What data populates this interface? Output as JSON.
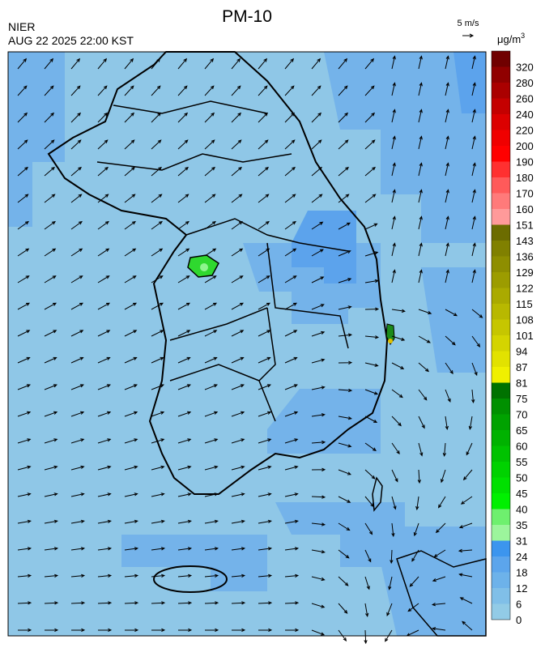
{
  "header": {
    "title": "PM-10",
    "source": "NIER",
    "timestamp": "AUG 22 2025 22:00 KST"
  },
  "wind_legend": {
    "label": "5 m/s"
  },
  "colorbar": {
    "unit": "μg/m",
    "unit_exponent": "3",
    "levels": [
      {
        "value": 0,
        "color": "#92cbe6"
      },
      {
        "value": 6,
        "color": "#80bfe8"
      },
      {
        "value": 12,
        "color": "#6db2ea"
      },
      {
        "value": 18,
        "color": "#5ca5ec"
      },
      {
        "value": 24,
        "color": "#3c95ee"
      },
      {
        "value": 31,
        "color": "#9cf59c"
      },
      {
        "value": 35,
        "color": "#6ef06e"
      },
      {
        "value": 40,
        "color": "#00f000"
      },
      {
        "value": 45,
        "color": "#00e000"
      },
      {
        "value": 50,
        "color": "#00d200"
      },
      {
        "value": 55,
        "color": "#00c200"
      },
      {
        "value": 60,
        "color": "#00b200"
      },
      {
        "value": 65,
        "color": "#00a200"
      },
      {
        "value": 70,
        "color": "#009000"
      },
      {
        "value": 75,
        "color": "#007200"
      },
      {
        "value": 81,
        "color": "#f0f000"
      },
      {
        "value": 87,
        "color": "#e2e200"
      },
      {
        "value": 94,
        "color": "#d4d400"
      },
      {
        "value": 101,
        "color": "#c6c600"
      },
      {
        "value": 108,
        "color": "#b8b800"
      },
      {
        "value": 115,
        "color": "#aaaa00"
      },
      {
        "value": 122,
        "color": "#9c9c00"
      },
      {
        "value": 129,
        "color": "#8e8e00"
      },
      {
        "value": 136,
        "color": "#808000"
      },
      {
        "value": 143,
        "color": "#6c6c00"
      },
      {
        "value": 151,
        "color": "#ff9a9a"
      },
      {
        "value": 160,
        "color": "#ff7a7a"
      },
      {
        "value": 170,
        "color": "#ff5a5a"
      },
      {
        "value": 180,
        "color": "#ff3030"
      },
      {
        "value": 190,
        "color": "#ff0000"
      },
      {
        "value": 200,
        "color": "#f00000"
      },
      {
        "value": 220,
        "color": "#dc0000"
      },
      {
        "value": 240,
        "color": "#c40000"
      },
      {
        "value": 260,
        "color": "#aa0000"
      },
      {
        "value": 280,
        "color": "#900000"
      },
      {
        "value": 320,
        "color": "#700000"
      }
    ]
  }
}
